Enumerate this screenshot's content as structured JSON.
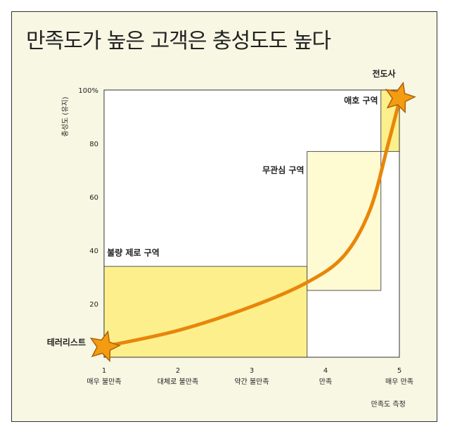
{
  "chart_data": {
    "type": "area",
    "title": "만족도가 높은 고객은 충성도도 높다",
    "ylabel": "충성도 (유지)",
    "xlabel": "만족도 측정",
    "ylim": [
      0,
      100
    ],
    "xlim": [
      1,
      5
    ],
    "yticks": [
      "20",
      "40",
      "60",
      "80",
      "100%"
    ],
    "ytick_values": [
      20,
      40,
      60,
      80,
      100
    ],
    "x_ticks": [
      {
        "value": 1,
        "number": "1",
        "label": "매우 불만족"
      },
      {
        "value": 2,
        "number": "2",
        "label": "대체로 불만족"
      },
      {
        "value": 3,
        "number": "3",
        "label": "약간 불만족"
      },
      {
        "value": 4,
        "number": "4",
        "label": "만족"
      },
      {
        "value": 5,
        "number": "5",
        "label": "매우 만족"
      }
    ],
    "zones": [
      {
        "label": "불량 제로 구역",
        "x": [
          1,
          3.75
        ],
        "y": [
          0,
          34
        ],
        "color": "#fdf08c"
      },
      {
        "label": "무관심 구역",
        "x": [
          3.75,
          4.75
        ],
        "y": [
          25,
          77
        ],
        "color": "#fefad2"
      },
      {
        "label": "애호 구역",
        "x": [
          4.75,
          5
        ],
        "y": [
          77,
          100
        ],
        "color": "#fdf08c"
      }
    ],
    "curve": {
      "x": [
        1,
        2,
        3,
        3.75,
        4.25,
        4.6,
        4.85,
        5
      ],
      "y": [
        4,
        10,
        19,
        28,
        38,
        55,
        80,
        96
      ],
      "color": "#e8860a"
    },
    "endpoints": [
      {
        "label": "테러리스트",
        "x": 1,
        "y": 4
      },
      {
        "label": "전도사",
        "x": 5,
        "y": 96
      }
    ]
  }
}
